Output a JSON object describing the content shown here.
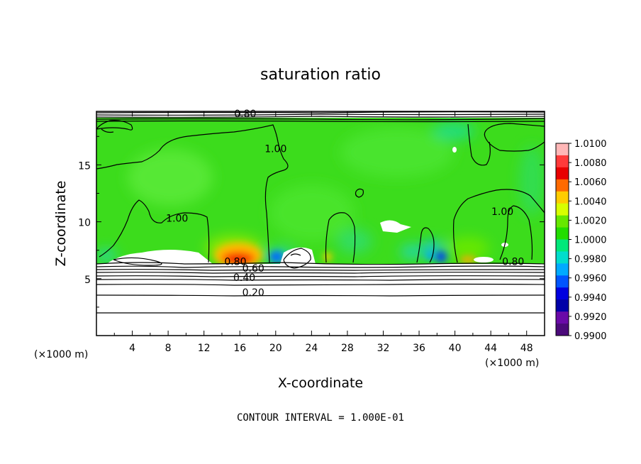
{
  "chart_data": {
    "type": "heatmap",
    "title": "saturation ratio",
    "xlabel": "X-coordinate",
    "ylabel": "Z-coordinate",
    "x_unit": "(×1000 m)",
    "xlim": [
      0,
      50
    ],
    "ylim": [
      0,
      19.7
    ],
    "x_ticks": [
      4,
      8,
      12,
      16,
      20,
      24,
      28,
      32,
      36,
      40,
      44,
      48
    ],
    "y_ticks": [
      5,
      10,
      15
    ],
    "colorbar": {
      "min": 0.99,
      "max": 1.01,
      "labels": [
        "1.0100",
        "1.0080",
        "1.0060",
        "1.0040",
        "1.0020",
        "1.0000",
        "0.9980",
        "0.9960",
        "0.9940",
        "0.9920",
        "0.9900"
      ],
      "colors": [
        "#ffb7b7",
        "#ff3a3a",
        "#e80000",
        "#ff6a00",
        "#ffcc00",
        "#d8ff00",
        "#66e800",
        "#22dd00",
        "#00e87a",
        "#00ddcc",
        "#00aaff",
        "#0055ff",
        "#0000e0",
        "#0000a8",
        "#6a0aa8",
        "#4b0a7a"
      ]
    },
    "contour_labels": [
      {
        "text": "1.00",
        "x": 20,
        "y": 16.1
      },
      {
        "text": "1.00",
        "x": 9,
        "y": 10.0
      },
      {
        "text": "1.00",
        "x": 45.3,
        "y": 10.6
      },
      {
        "text": "0.80",
        "x": 16.6,
        "y": 19.2
      },
      {
        "text": "0.80",
        "x": 15.5,
        "y": 6.2
      },
      {
        "text": "0.60",
        "x": 17.5,
        "y": 5.6
      },
      {
        "text": "0.40",
        "x": 16.5,
        "y": 4.8
      },
      {
        "text": "0.20",
        "x": 17.5,
        "y": 3.5
      },
      {
        "text": "0.80",
        "x": 46.5,
        "y": 6.2
      }
    ],
    "footer": "CONTOUR INTERVAL = 1.000E-01"
  }
}
